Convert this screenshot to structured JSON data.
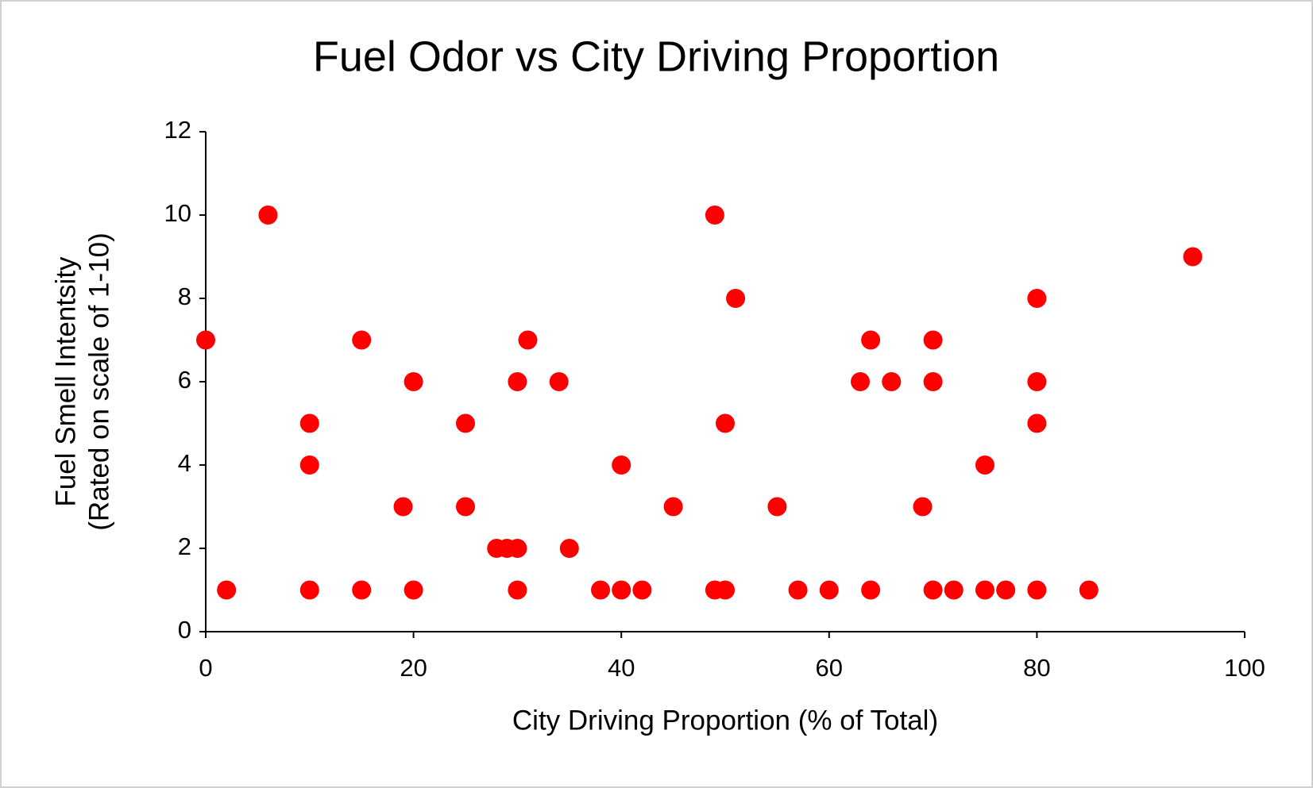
{
  "chart_data": {
    "type": "scatter",
    "title": "Fuel Odor vs City Driving Proportion",
    "x_label": "City Driving Proportion (% of Total)",
    "y_label": [
      "Fuel Smell Intentsity",
      "(Rated on scale of 1-10)"
    ],
    "color": "#ff0000",
    "xlim": [
      0,
      100
    ],
    "xticks": [
      0,
      20,
      40,
      60,
      80,
      100
    ],
    "ylim": [
      0,
      12
    ],
    "yticks": [
      0,
      2,
      4,
      6,
      8,
      10,
      12
    ],
    "grid": false,
    "x": [
      0,
      2,
      6,
      10,
      10,
      10,
      15,
      15,
      19,
      20,
      20,
      25,
      25,
      28,
      29,
      30,
      30,
      30,
      31,
      34,
      35,
      38,
      40,
      40,
      42,
      45,
      49,
      49,
      50,
      50,
      51,
      55,
      57,
      60,
      63,
      64,
      64,
      66,
      69,
      70,
      70,
      70,
      72,
      75,
      75,
      77,
      80,
      80,
      80,
      80,
      85,
      95
    ],
    "values": [
      7,
      1,
      10,
      5,
      4,
      1,
      7,
      1,
      3,
      6,
      1,
      5,
      3,
      2,
      2,
      2,
      6,
      1,
      7,
      6,
      2,
      1,
      4,
      1,
      1,
      3,
      10,
      1,
      1,
      5,
      8,
      3,
      1,
      1,
      6,
      7,
      1,
      6,
      3,
      7,
      6,
      1,
      1,
      4,
      1,
      1,
      8,
      6,
      5,
      1,
      1,
      9
    ]
  }
}
